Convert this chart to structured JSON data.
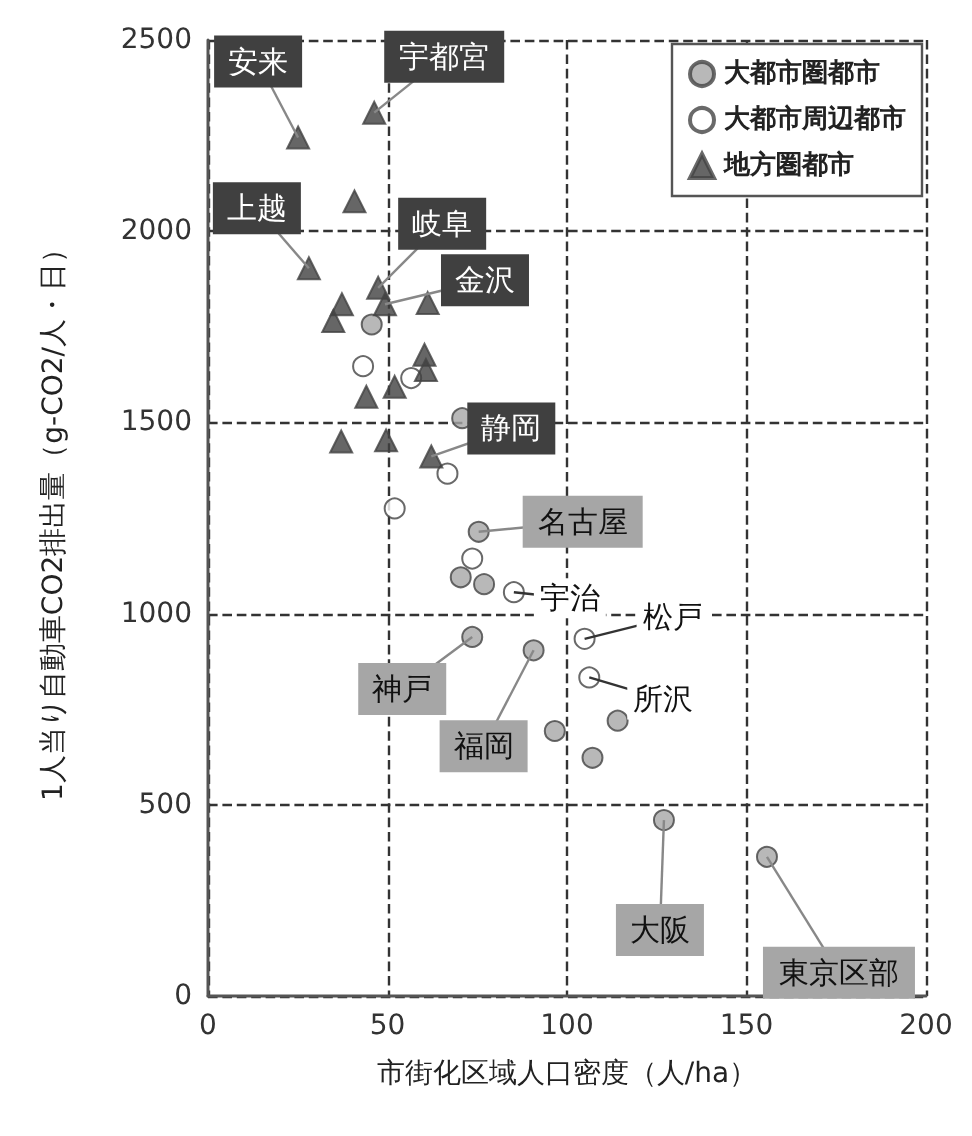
{
  "chart_data": {
    "type": "scatter",
    "xlabel": "市街化区域人口密度（人/ha）",
    "ylabel": "1人当り自動車CO2排出量（g-CO2/人・日）",
    "xlim": [
      0,
      200
    ],
    "xticks": [
      0,
      50,
      100,
      150,
      200
    ],
    "ylim": [
      0,
      2500
    ],
    "yticks": [
      0,
      500,
      1000,
      1500,
      2000,
      2500
    ],
    "grid": true,
    "legend": "top right",
    "series": [
      {
        "name": "大都市圏都市",
        "color": "#a6a6a6",
        "marker": "circle",
        "x": [
          45.6,
          70.8,
          75.4,
          70.4,
          76.9,
          73.6,
          90.7,
          96.6,
          114.1,
          107.1,
          127.0,
          155.7
        ],
        "values": [
          1756,
          1511,
          1214,
          1095,
          1077,
          939,
          904,
          693,
          720,
          623,
          460,
          364
        ]
      },
      {
        "name": "大都市周辺都市",
        "color": "#ffffff",
        "marker": "circle",
        "x": [
          43.2,
          56.6,
          66.7,
          52.0,
          73.6,
          85.2,
          104.9,
          106.2
        ],
        "values": [
          1647,
          1616,
          1366,
          1275,
          1144,
          1056,
          934,
          833
        ]
      },
      {
        "name": "地方圏都市",
        "color": "#404040",
        "marker": "triangle",
        "x": [
          46.3,
          25.1,
          40.8,
          28.1,
          47.4,
          37.3,
          49.3,
          34.9,
          61.2,
          60.3,
          60.7,
          52.0,
          44.1,
          37.1,
          49.6,
          62.2
        ],
        "values": [
          2310,
          2245,
          2078,
          1903,
          1852,
          1809,
          1809,
          1765,
          1812,
          1677,
          1637,
          1593,
          1567,
          1450,
          1453,
          1411
        ]
      }
    ],
    "annotations": [
      {
        "text": "安来",
        "x": 25.1,
        "y": 2245
      },
      {
        "text": "宇都宮",
        "x": 46.3,
        "y": 2310
      },
      {
        "text": "上越",
        "x": 28.1,
        "y": 1903
      },
      {
        "text": "岐阜",
        "x": 47.4,
        "y": 1852
      },
      {
        "text": "金沢",
        "x": 49.3,
        "y": 1809
      },
      {
        "text": "静岡",
        "x": 62.2,
        "y": 1411
      },
      {
        "text": "名古屋",
        "x": 75.4,
        "y": 1214
      },
      {
        "text": "宇治",
        "x": 85.2,
        "y": 1056
      },
      {
        "text": "松戸",
        "x": 104.9,
        "y": 934
      },
      {
        "text": "所沢",
        "x": 106.2,
        "y": 833
      },
      {
        "text": "神戸",
        "x": 73.6,
        "y": 939
      },
      {
        "text": "福岡",
        "x": 90.7,
        "y": 904
      },
      {
        "text": "大阪",
        "x": 127.0,
        "y": 460
      },
      {
        "text": "東京区部",
        "x": 155.7,
        "y": 364
      }
    ]
  }
}
